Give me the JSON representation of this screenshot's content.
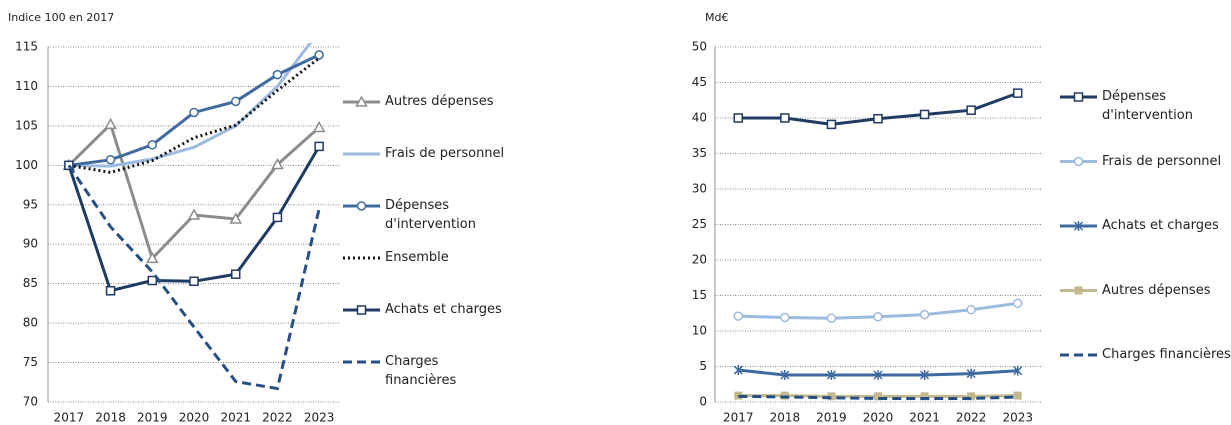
{
  "chart_data": [
    {
      "type": "line",
      "y_label": "Indice 100 en 2017",
      "categories": [
        "2017",
        "2018",
        "2019",
        "2020",
        "2021",
        "2022",
        "2023"
      ],
      "ylim": [
        70,
        115
      ],
      "yticks": [
        70,
        75,
        80,
        85,
        90,
        95,
        100,
        105,
        110,
        115
      ],
      "grid": true,
      "legend": "right",
      "series": [
        {
          "name": "Autres dépenses",
          "color": "#8c8c8c",
          "marker": "triangle",
          "dash": "solid",
          "values": [
            100,
            105.2,
            88.2,
            93.7,
            93.2,
            100.1,
            104.8
          ]
        },
        {
          "name": "Frais de personnel",
          "color": "#9dbbe0",
          "marker": "none",
          "dash": "solid",
          "values": [
            100,
            99.9,
            100.8,
            102.3,
            105,
            110,
            117
          ]
        },
        {
          "name": "Dépenses d'intervention",
          "color": "#3f6aa0",
          "marker": "circle",
          "dash": "solid",
          "values": [
            100,
            100.7,
            102.6,
            106.7,
            108.1,
            111.5,
            114
          ]
        },
        {
          "name": "Ensemble",
          "color": "#111111",
          "marker": "none",
          "dash": "dotted",
          "values": [
            100,
            99.1,
            100.6,
            103.5,
            105.1,
            109.5,
            113.6
          ]
        },
        {
          "name": "Achats et charges",
          "color": "#1f3b64",
          "marker": "square",
          "dash": "solid",
          "values": [
            100,
            84.1,
            85.4,
            85.3,
            86.2,
            93.4,
            102.4
          ]
        },
        {
          "name": "Charges financières",
          "color": "#254f85",
          "marker": "none",
          "dash": "dashed",
          "values": [
            100,
            92.2,
            86.5,
            79.5,
            72.6,
            71.7,
            94.5
          ]
        }
      ]
    },
    {
      "type": "line",
      "y_label": "Md€",
      "categories": [
        "2017",
        "2018",
        "2019",
        "2020",
        "2021",
        "2022",
        "2023"
      ],
      "ylim": [
        0,
        50
      ],
      "yticks": [
        0,
        5,
        10,
        15,
        20,
        25,
        30,
        35,
        40,
        45,
        50
      ],
      "grid": true,
      "legend": "right",
      "series": [
        {
          "name": "Dépenses d'intervention",
          "color": "#1f3b64",
          "marker": "square",
          "dash": "solid",
          "values": [
            40.0,
            40.0,
            39.1,
            39.9,
            40.5,
            41.1,
            43.5
          ]
        },
        {
          "name": "Frais de personnel",
          "color": "#9dbbe0",
          "marker": "circle",
          "dash": "solid",
          "values": [
            12.1,
            11.9,
            11.8,
            12.0,
            12.3,
            13.0,
            13.9
          ]
        },
        {
          "name": "Achats et charges",
          "color": "#3f6aa0",
          "marker": "asterisk",
          "dash": "solid",
          "values": [
            4.5,
            3.8,
            3.8,
            3.8,
            3.8,
            4.0,
            4.4
          ]
        },
        {
          "name": "Autres dépenses",
          "color": "#c4b98e",
          "marker": "filled-square",
          "dash": "solid",
          "values": [
            0.9,
            0.9,
            0.8,
            0.8,
            0.8,
            0.8,
            0.9
          ]
        },
        {
          "name": "Charges financières",
          "color": "#254f85",
          "marker": "none",
          "dash": "dashed",
          "values": [
            0.8,
            0.7,
            0.6,
            0.5,
            0.5,
            0.5,
            0.7
          ]
        }
      ]
    }
  ]
}
